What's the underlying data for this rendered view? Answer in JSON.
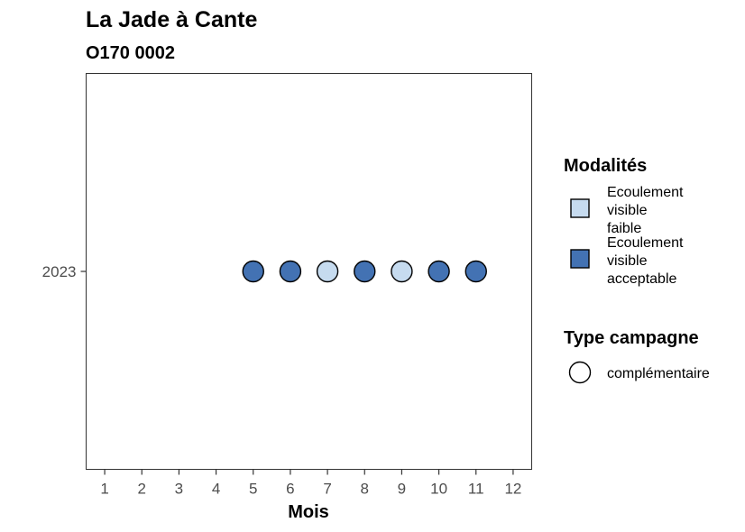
{
  "chart_data": {
    "type": "scatter",
    "title": "La Jade à Cante",
    "subtitle": "O170 0002",
    "xlabel": "Mois",
    "ylabel": "",
    "x_ticks": [
      "1",
      "2",
      "3",
      "4",
      "5",
      "6",
      "7",
      "8",
      "9",
      "10",
      "11",
      "12"
    ],
    "xlim": [
      0.5,
      12.5
    ],
    "y_categories": [
      "2023"
    ],
    "points": [
      {
        "x": 5,
        "y": "2023",
        "modalite": "Ecoulement visible acceptable"
      },
      {
        "x": 6,
        "y": "2023",
        "modalite": "Ecoulement visible acceptable"
      },
      {
        "x": 7,
        "y": "2023",
        "modalite": "Ecoulement visible faible"
      },
      {
        "x": 8,
        "y": "2023",
        "modalite": "Ecoulement visible acceptable"
      },
      {
        "x": 9,
        "y": "2023",
        "modalite": "Ecoulement visible faible"
      },
      {
        "x": 10,
        "y": "2023",
        "modalite": "Ecoulement visible acceptable"
      },
      {
        "x": 11,
        "y": "2023",
        "modalite": "Ecoulement visible acceptable"
      }
    ],
    "legend": {
      "placement": "right",
      "fill_title": "Modalités",
      "fill_items": [
        {
          "label": "Ecoulement visible faible",
          "lines": [
            "Ecoulement",
            "visible",
            "faible"
          ],
          "color": "#c6dbef"
        },
        {
          "label": "Ecoulement visible acceptable",
          "lines": [
            "Ecoulement",
            "visible",
            "acceptable"
          ],
          "color": "#4372b3"
        }
      ],
      "shape_title": "Type campagne",
      "shape_items": [
        {
          "label": "complémentaire",
          "shape": "circle"
        }
      ]
    },
    "grid": false
  }
}
